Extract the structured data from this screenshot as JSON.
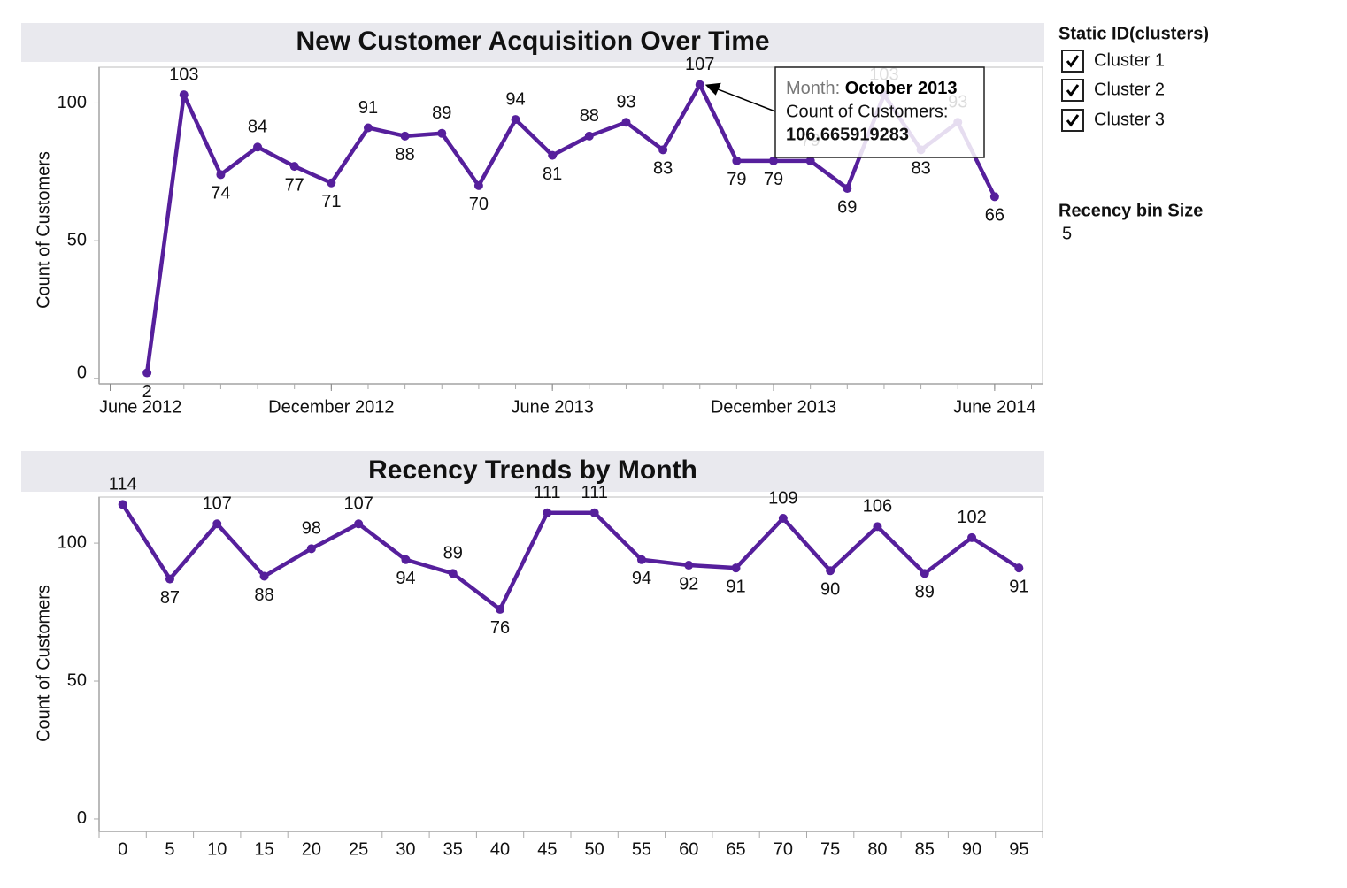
{
  "chart_data": [
    {
      "type": "line",
      "title": "New Customer Acquisition Over Time",
      "y_label": "Count of Customers",
      "color": "#561f9c",
      "x": [
        "2012-07",
        "2012-08",
        "2012-09",
        "2012-10",
        "2012-11",
        "2012-12",
        "2013-01",
        "2013-02",
        "2013-03",
        "2013-04",
        "2013-05",
        "2013-06",
        "2013-07",
        "2013-08",
        "2013-09",
        "2013-10",
        "2013-11",
        "2013-12",
        "2014-01",
        "2014-02",
        "2014-03",
        "2014-04",
        "2014-05",
        "2014-06"
      ],
      "values": [
        2,
        103,
        74,
        84,
        77,
        71,
        91,
        88,
        89,
        70,
        94,
        81,
        88,
        93,
        83,
        106.665919283,
        79,
        79,
        79,
        69,
        103,
        83,
        93,
        66
      ],
      "value_labels": [
        "2",
        "103",
        "74",
        "84",
        "77",
        "71",
        "91",
        "88",
        "89",
        "70",
        "94",
        "81",
        "88",
        "93",
        "83",
        "107",
        "79",
        "79",
        "79",
        "69",
        "103",
        "83",
        "93",
        "66"
      ],
      "xlim": [
        "2012-05-22",
        "2014-07-10"
      ],
      "xticks": [
        {
          "value": "2012-06",
          "label": "June 2012"
        },
        {
          "value": "2012-12",
          "label": "December 2012"
        },
        {
          "value": "2013-06",
          "label": "June 2013"
        },
        {
          "value": "2013-12",
          "label": "December 2013"
        },
        {
          "value": "2014-06",
          "label": "June 2014"
        }
      ],
      "ylim": [
        -2,
        113
      ],
      "yticks": [
        0,
        50,
        100
      ],
      "tooltip": {
        "month_label": "Month:",
        "month": "October 2013",
        "count_label": "Count of Customers:",
        "count": 106.665919283,
        "point": 15
      }
    },
    {
      "type": "line",
      "title": "Recency Trends by Month",
      "y_label": "Count of Customers",
      "color": "#561f9c",
      "categories": [
        0,
        5,
        10,
        15,
        20,
        25,
        30,
        35,
        40,
        45,
        50,
        55,
        60,
        65,
        70,
        75,
        80,
        85,
        90,
        95
      ],
      "values": [
        114,
        87,
        107,
        88,
        98,
        107,
        94,
        89,
        76,
        111,
        111,
        94,
        92,
        91,
        109,
        90,
        106,
        89,
        102,
        91
      ],
      "ylim": [
        -4.5,
        116.7
      ],
      "yticks": [
        0,
        50,
        100
      ]
    }
  ],
  "filter": {
    "title": "Static ID(clusters)",
    "items": [
      "Cluster 1",
      "Cluster 2",
      "Cluster 3"
    ]
  },
  "parameter": {
    "title": "Recency bin Size",
    "value": 5
  }
}
